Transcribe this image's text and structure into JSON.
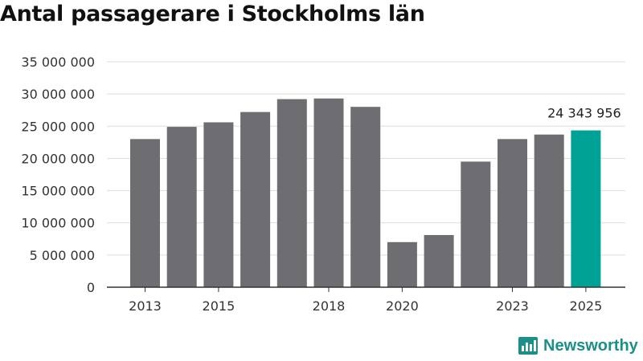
{
  "title": "Antal passagerare i Stockholms län",
  "brand": {
    "name": "Newsworthy"
  },
  "colors": {
    "bar": "#6e6d72",
    "highlight": "#00a296",
    "grid": "#dddddd",
    "axis": "#333333",
    "brand": "#1c8f86"
  },
  "chart_data": {
    "type": "bar",
    "title": "Antal passagerare i Stockholms län",
    "xlabel": "",
    "ylabel": "",
    "ylim": [
      0,
      35000000
    ],
    "yticks": [
      0,
      5000000,
      10000000,
      15000000,
      20000000,
      25000000,
      30000000,
      35000000
    ],
    "ytick_labels": [
      "0",
      "5 000 000",
      "10 000 000",
      "15 000 000",
      "20 000 000",
      "25 000 000",
      "30 000 000",
      "35 000 000"
    ],
    "categories": [
      "2013",
      "2014",
      "2015",
      "2016",
      "2017",
      "2018",
      "2019",
      "2020",
      "2021",
      "2022",
      "2023",
      "2024",
      "2025"
    ],
    "values": [
      23000000,
      24900000,
      25600000,
      27200000,
      29200000,
      29300000,
      28000000,
      7000000,
      8100000,
      19500000,
      23000000,
      23700000,
      24343956
    ],
    "xtick_labels": [
      "2013",
      "2015",
      "2018",
      "2020",
      "2023",
      "2025"
    ],
    "highlight": "2025",
    "annotation": {
      "category": "2025",
      "text": "24 343 956"
    },
    "grid": true
  }
}
